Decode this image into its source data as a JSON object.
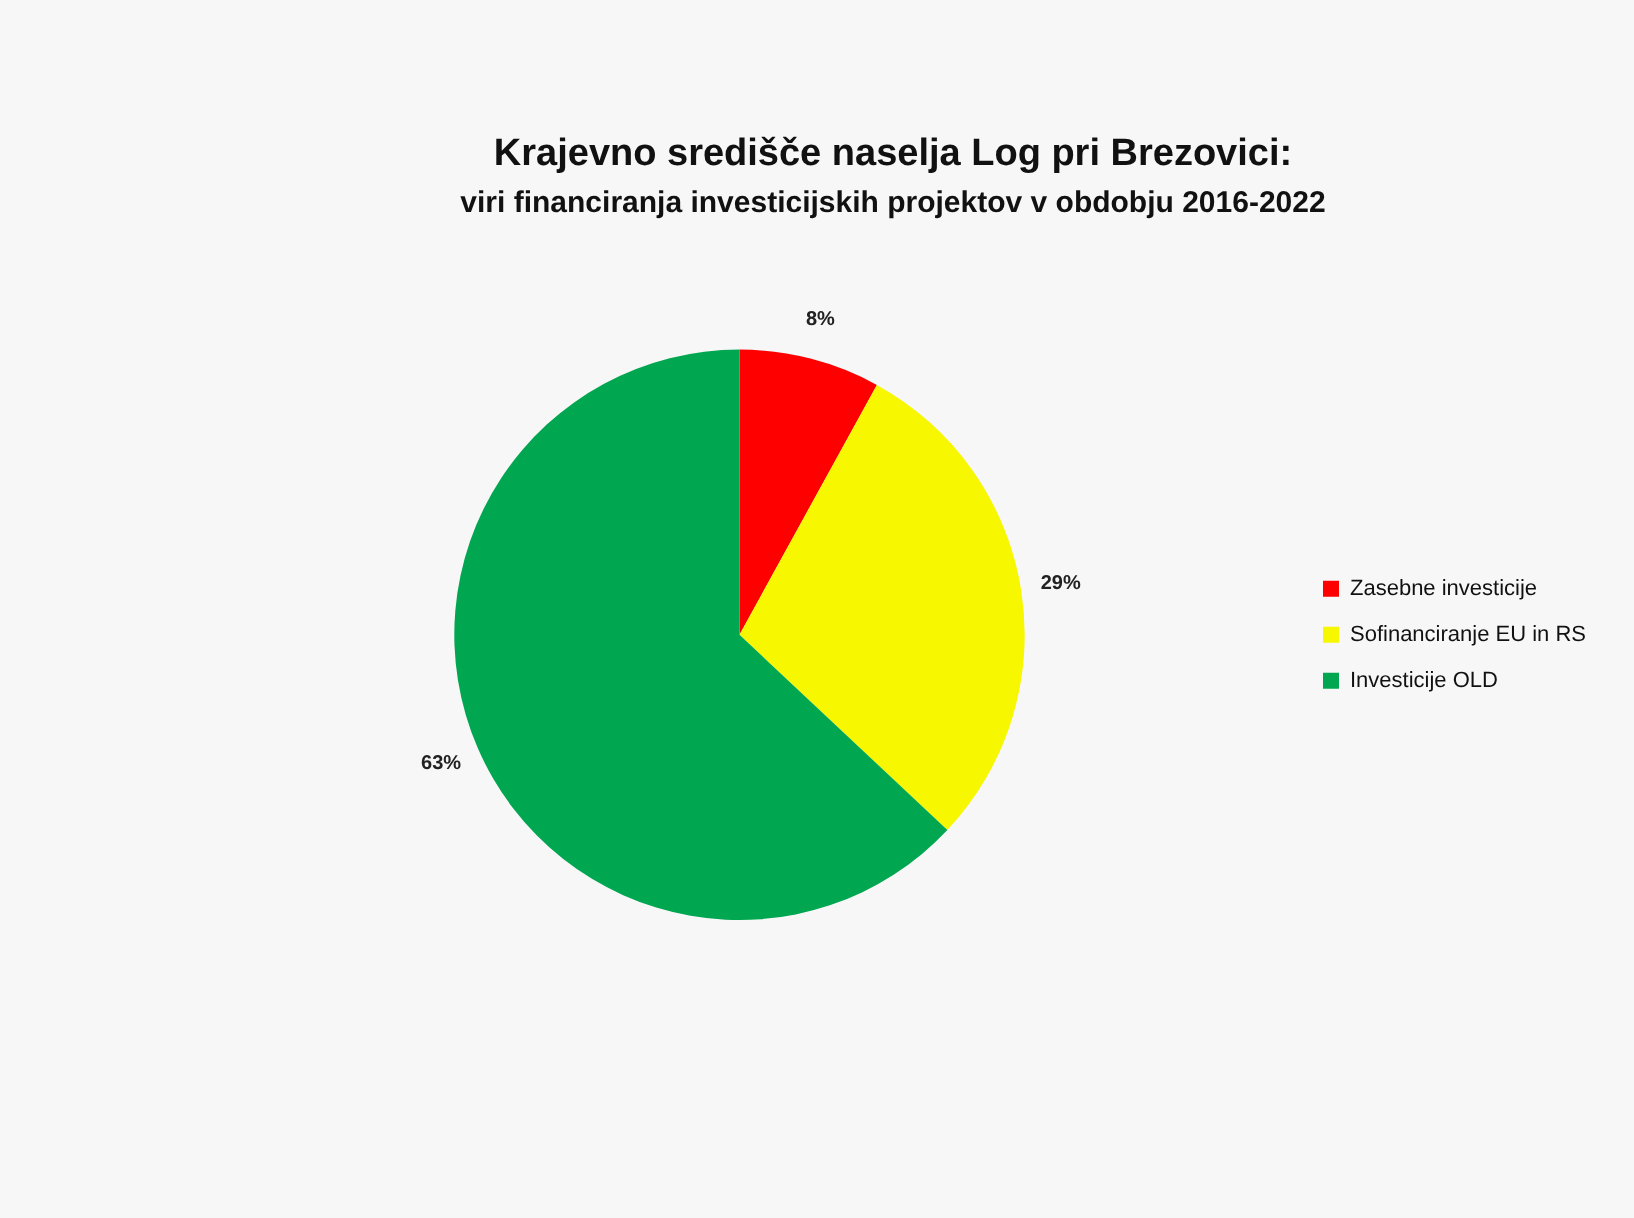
{
  "chart_data": {
    "type": "pie",
    "title": "Krajevno središče naselja Log pri Brezovici:",
    "subtitle": "viri financiranja investicijskih projektov v obdobju 2016-2022",
    "categories": [
      "Zasebne investicije",
      "Sofinanciranje EU in RS",
      "Investicije OLD"
    ],
    "values": [
      8,
      29,
      63
    ],
    "colors": [
      "#ff0000",
      "#f7f700",
      "#00a650"
    ],
    "value_labels": [
      "8%",
      "29%",
      "63%"
    ],
    "legend": "right"
  }
}
